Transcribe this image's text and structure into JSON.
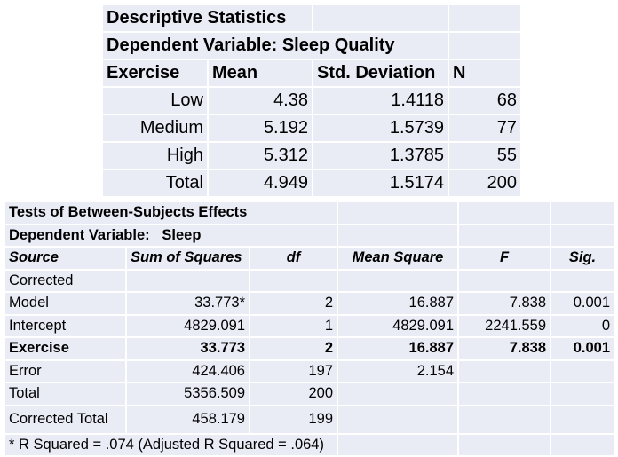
{
  "descriptive": {
    "title": "Descriptive Statistics",
    "dependent": "Dependent Variable: Sleep Quality",
    "headers": {
      "factor": "Exercise",
      "mean": "Mean",
      "sd": "Std. Deviation",
      "n": "N"
    },
    "rows": [
      {
        "level": "Low",
        "mean": "4.38",
        "sd": "1.4118",
        "n": "68"
      },
      {
        "level": "Medium",
        "mean": "5.192",
        "sd": "1.5739",
        "n": "77"
      },
      {
        "level": "High",
        "mean": "5.312",
        "sd": "1.3785",
        "n": "55"
      },
      {
        "level": "Total",
        "mean": "4.949",
        "sd": "1.5174",
        "n": "200"
      }
    ]
  },
  "tests": {
    "title": "Tests of Between-Subjects Effects",
    "dependent": "Dependent Variable:   Sleep",
    "headers": {
      "source": "Source",
      "ss": "Sum of Squares",
      "df": "df",
      "ms": "Mean Square",
      "f": "F",
      "sig": "Sig."
    },
    "corrected_prefix": "Corrected",
    "rows": [
      {
        "source": "Model",
        "ss": "33.773*",
        "df": "2",
        "ms": "16.887",
        "f": "7.838",
        "sig": "0.001"
      },
      {
        "source": "Intercept",
        "ss": "4829.091",
        "df": "1",
        "ms": "4829.091",
        "f": "2241.559",
        "sig": "0"
      },
      {
        "source": "Exercise",
        "ss": "33.773",
        "df": "2",
        "ms": "16.887",
        "f": "7.838",
        "sig": "0.001"
      },
      {
        "source": "Error",
        "ss": "424.406",
        "df": "197",
        "ms": "2.154",
        "f": "",
        "sig": ""
      },
      {
        "source": "Total",
        "ss": "5356.509",
        "df": "200",
        "ms": "",
        "f": "",
        "sig": ""
      },
      {
        "source": "Corrected Total",
        "ss": "458.179",
        "df": "199",
        "ms": "",
        "f": "",
        "sig": ""
      }
    ],
    "footnote": "* R Squared = .074 (Adjusted R Squared = .064)"
  }
}
